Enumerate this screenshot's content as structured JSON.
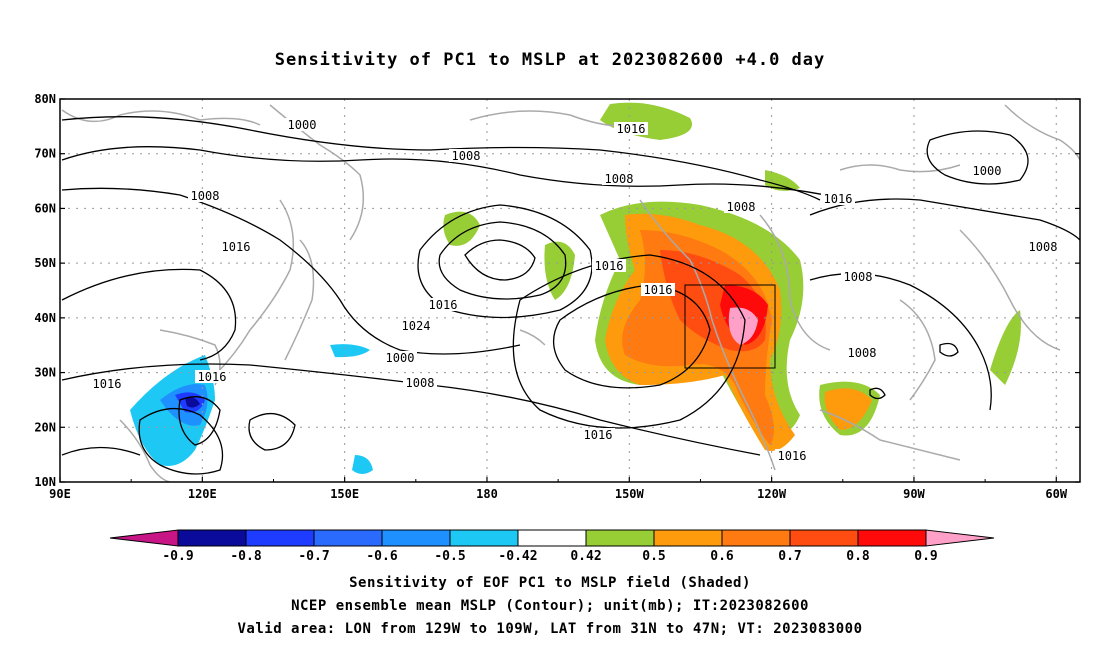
{
  "title": "Sensitivity of PC1 to MSLP at 2023082600 +4.0 day",
  "lat_labels": [
    "80N",
    "70N",
    "60N",
    "50N",
    "40N",
    "30N",
    "20N",
    "10N"
  ],
  "lon_labels": [
    "90E",
    "120E",
    "150E",
    "180",
    "150W",
    "120W",
    "90W",
    "60W"
  ],
  "contour_labels": [
    {
      "text": "1000",
      "lon": 100.5,
      "lat": 75
    },
    {
      "text": "1008",
      "lon": 155.5,
      "lat": 69.5
    },
    {
      "text": "1016",
      "lon": 123,
      "lat": 75.8
    },
    {
      "text": "1008",
      "lon": 229.7,
      "lat": 62.8
    },
    {
      "text": "1000",
      "lon": 269.7,
      "lat": 67.2
    },
    {
      "text": "1016",
      "lon": 276.2,
      "lat": 61.5
    },
    {
      "text": "1008",
      "lon": 248.3,
      "lat": 60.2
    },
    {
      "text": "1008",
      "lon": 255.3,
      "lat": 65.6
    },
    {
      "text": "1016",
      "lon": 277.5,
      "lat": 62.8
    },
    {
      "text": "1016",
      "lon": 114.7,
      "lat": 68.3
    },
    {
      "text": "1016",
      "lon": 115.1,
      "lat": 68.3
    },
    {
      "text": "1016",
      "lon": 212.3,
      "lat": 62.2
    },
    {
      "text": "1024",
      "lon": 220.1,
      "lat": 63.0
    },
    {
      "text": "1000",
      "lon": 184.2,
      "lat": 62.5
    },
    {
      "text": "1008",
      "lon": 181.0,
      "lat": 62.7
    },
    {
      "text": "1016",
      "lon": 189.4,
      "lat": 64.2
    },
    {
      "text": "1016",
      "lon": 186.8,
      "lat": 64.6
    },
    {
      "text": "1008",
      "lon": 222.0,
      "lat": 61.5
    },
    {
      "text": "1016",
      "lon": 176.8,
      "lat": 61.5
    },
    {
      "text": "1016",
      "lon": 93.7,
      "lat": 61.0
    },
    {
      "text": "1008",
      "lon": 120.3,
      "lat": 61.2
    },
    {
      "text": "1008",
      "lon": 277.3,
      "lat": 60.3
    }
  ],
  "colorbar": {
    "labels": [
      "-0.9",
      "-0.8",
      "-0.7",
      "-0.6",
      "-0.5",
      "-0.42",
      "0.42",
      "0.5",
      "0.6",
      "0.7",
      "0.8",
      "0.9"
    ],
    "colors": [
      "#0a0a9b",
      "#1e3cff",
      "#2a6bfd",
      "#1e90ff",
      "#1ec8f5",
      "#ffffff",
      "#97cd35",
      "#fd9b0c",
      "#ff7a10",
      "#ff4c10",
      "#ff0a0a"
    ],
    "left_end_color": "#c71585",
    "right_end_color": "#ffa0c8"
  },
  "captions": [
    "Sensitivity of EOF PC1 to MSLP field (Shaded)",
    "NCEP ensemble mean MSLP (Contour); unit(mb); IT:2023082600",
    "Valid area: LON from 129W to 109W, LAT from 31N to 47N; VT: 2023083000"
  ]
}
